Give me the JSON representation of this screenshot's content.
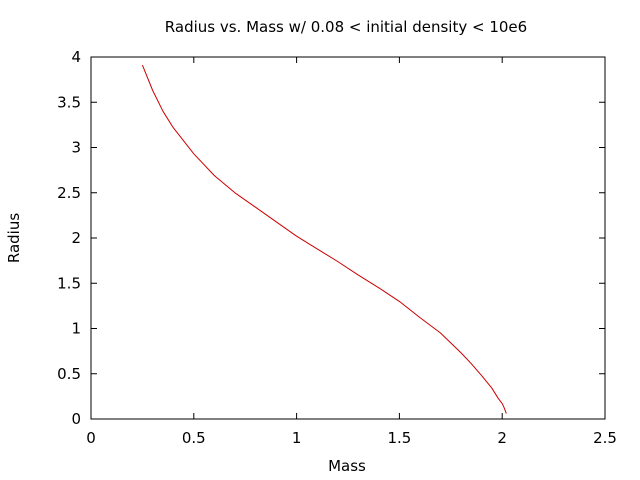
{
  "chart_data": {
    "type": "line",
    "title": "Radius vs. Mass w/ 0.08 < initial density < 10e6",
    "xlabel": "Mass",
    "ylabel": "Radius",
    "xlim": [
      0,
      2.5
    ],
    "ylim": [
      0,
      4
    ],
    "xticks": [
      "0",
      "0.5",
      "1",
      "1.5",
      "2",
      "2.5"
    ],
    "yticks": [
      "0",
      "0.5",
      "1",
      "1.5",
      "2",
      "2.5",
      "3",
      "3.5",
      "4"
    ],
    "grid": false,
    "legend": "none",
    "series": [
      {
        "color": "#cc0000",
        "x": [
          0.25,
          0.3,
          0.35,
          0.4,
          0.5,
          0.6,
          0.7,
          0.8,
          0.9,
          1.0,
          1.1,
          1.2,
          1.3,
          1.4,
          1.5,
          1.6,
          1.7,
          1.8,
          1.85,
          1.9,
          1.95,
          1.98,
          2.0,
          2.01,
          2.02
        ],
        "y": [
          3.91,
          3.63,
          3.4,
          3.22,
          2.93,
          2.69,
          2.5,
          2.34,
          2.18,
          2.02,
          1.88,
          1.74,
          1.59,
          1.45,
          1.3,
          1.12,
          0.95,
          0.73,
          0.61,
          0.48,
          0.34,
          0.23,
          0.17,
          0.12,
          0.06
        ]
      }
    ]
  }
}
